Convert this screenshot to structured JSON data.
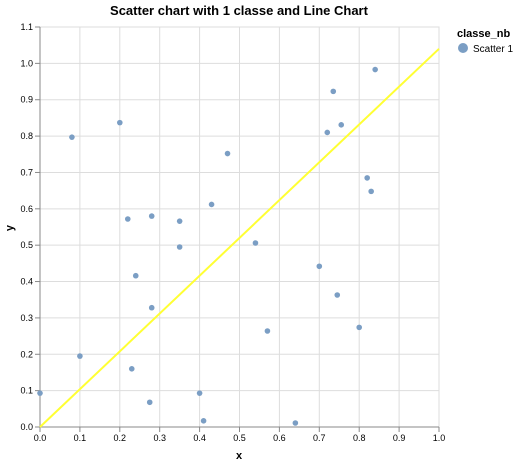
{
  "chart_data": {
    "type": "scatter",
    "title": "Scatter chart with 1 classe and Line Chart",
    "xlabel": "x",
    "ylabel": "y",
    "xlim": [
      0.0,
      1.0
    ],
    "ylim": [
      0.0,
      1.1
    ],
    "x_ticks": [
      "0.0",
      "0.1",
      "0.2",
      "0.3",
      "0.4",
      "0.5",
      "0.6",
      "0.7",
      "0.8",
      "0.9",
      "1.0"
    ],
    "y_ticks": [
      "0.0",
      "0.1",
      "0.2",
      "0.3",
      "0.4",
      "0.5",
      "0.6",
      "0.7",
      "0.8",
      "0.9",
      "1.0",
      "1.1"
    ],
    "grid": true,
    "legend": {
      "title": "classe_nb",
      "position": "top-right",
      "entries": [
        "Scatter 1"
      ]
    },
    "series": [
      {
        "name": "Scatter 1",
        "type": "scatter",
        "color": "#7b9ec4",
        "points": [
          [
            0.0,
            0.093
          ],
          [
            0.08,
            0.797
          ],
          [
            0.1,
            0.195
          ],
          [
            0.2,
            0.837
          ],
          [
            0.22,
            0.572
          ],
          [
            0.23,
            0.16
          ],
          [
            0.24,
            0.416
          ],
          [
            0.275,
            0.068
          ],
          [
            0.28,
            0.58
          ],
          [
            0.28,
            0.328
          ],
          [
            0.35,
            0.566
          ],
          [
            0.35,
            0.495
          ],
          [
            0.4,
            0.093
          ],
          [
            0.41,
            0.017
          ],
          [
            0.43,
            0.612
          ],
          [
            0.47,
            0.752
          ],
          [
            0.54,
            0.506
          ],
          [
            0.57,
            0.264
          ],
          [
            0.64,
            0.011
          ],
          [
            0.7,
            0.442
          ],
          [
            0.72,
            0.81
          ],
          [
            0.735,
            0.923
          ],
          [
            0.745,
            0.363
          ],
          [
            0.755,
            0.831
          ],
          [
            0.8,
            0.274
          ],
          [
            0.82,
            0.685
          ],
          [
            0.83,
            0.648
          ],
          [
            0.84,
            0.983
          ]
        ]
      },
      {
        "type": "line",
        "color": "#ffff33",
        "points": [
          [
            0.0,
            0.0
          ],
          [
            1.0,
            1.04
          ]
        ]
      }
    ]
  }
}
